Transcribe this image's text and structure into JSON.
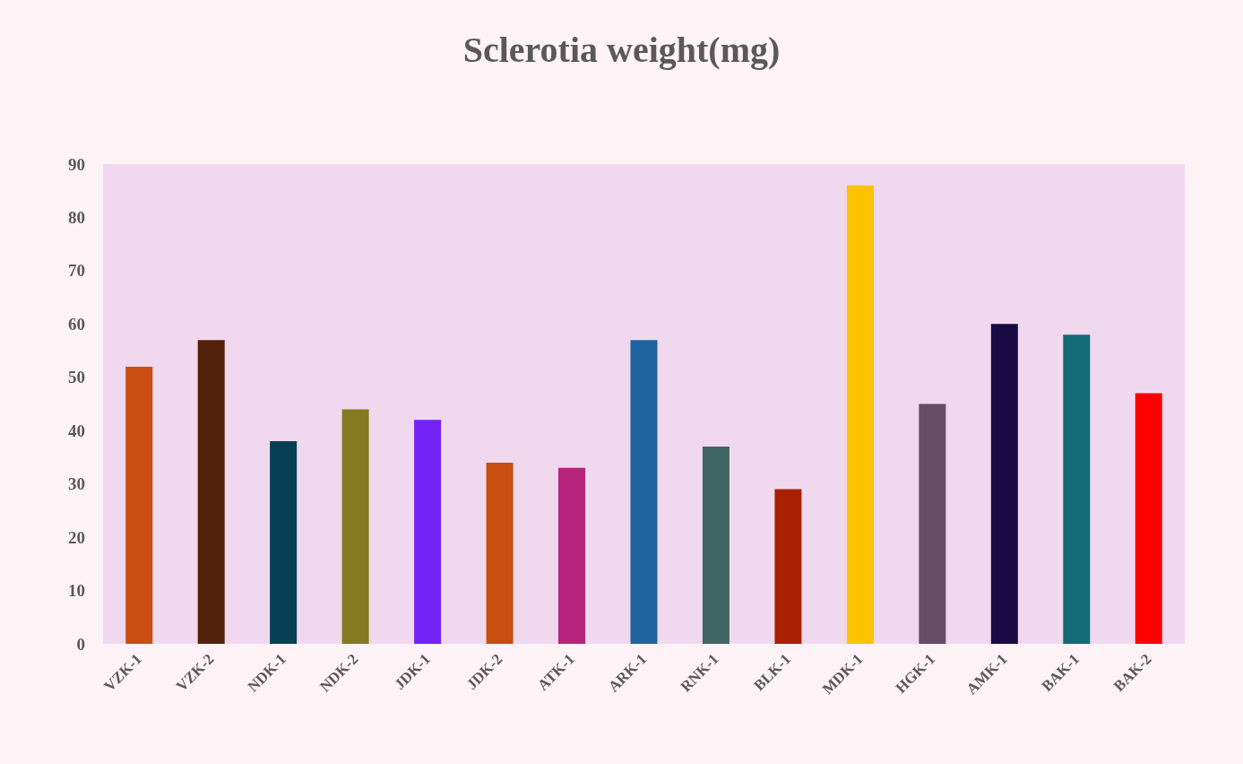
{
  "chart_data": {
    "type": "bar",
    "title": "Sclerotia weight(mg)",
    "categories": [
      "VZK-1",
      "VZK-2",
      "NDK-1",
      "NDK-2",
      "JDK-1",
      "JDK-2",
      "ATK-1",
      "ARK-1",
      "RNK-1",
      "BLK-1",
      "MDK-1",
      "HGK-1",
      "AMK-1",
      "BAK-1",
      "BAK-2"
    ],
    "values": [
      52,
      57,
      38,
      44,
      42,
      34,
      33,
      57,
      37,
      29,
      86,
      45,
      60,
      58,
      47
    ],
    "colors": [
      "#c84e12",
      "#53200a",
      "#073f52",
      "#857a20",
      "#7221f4",
      "#c84e12",
      "#b5237a",
      "#1e64a0",
      "#40645f",
      "#a92003",
      "#fdc300",
      "#654d63",
      "#180a45",
      "#136a77",
      "#fc0000"
    ],
    "ylim": [
      0,
      90
    ],
    "yticks": [
      0,
      10,
      20,
      30,
      40,
      50,
      60,
      70,
      80,
      90
    ],
    "grid": false
  }
}
